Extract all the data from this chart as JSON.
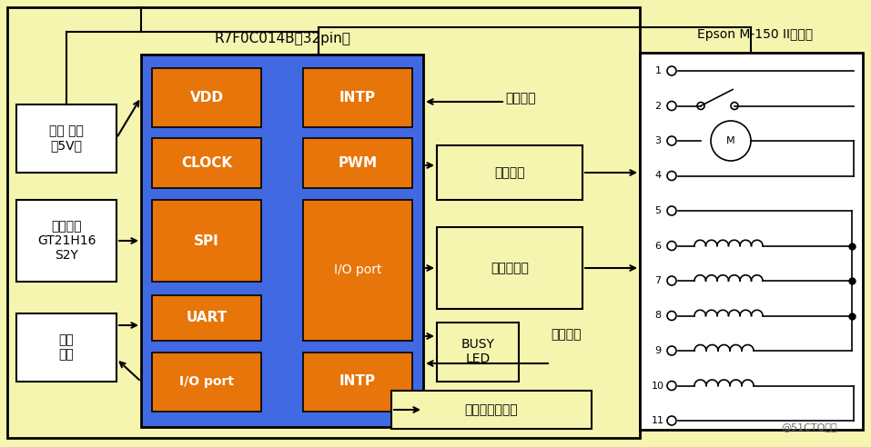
{
  "fig_width": 9.57,
  "fig_height": 4.92,
  "dpi": 100,
  "bg_color": "#f5f5b0",
  "mcu_blue": "#4169e1",
  "orange": "#e8750a",
  "white": "#ffffff",
  "black": "#000000",
  "yellow_box": "#f5f5b0",
  "mcu_label": "R7F0C014B（32pin）",
  "epson_title": "Epson M-150 II打印头",
  "watermark": "@51CTO博客",
  "left_labels": [
    "电源 供电\n（5V）",
    "字库芯片\nGT21H16\nS2Y",
    "用户\n接口"
  ],
  "mcu_left_pins": [
    "VDD",
    "CLOCK",
    "SPI",
    "UART",
    "I/O port"
  ],
  "mcu_right_pins": [
    "INTP",
    "PWM",
    "I/O port",
    "INTP"
  ],
  "right_labels": [
    "复位检测",
    "电机驱动",
    "打印针驱动",
    "BUSY\nLED",
    "位置检测",
    "走纸、自检按键"
  ]
}
